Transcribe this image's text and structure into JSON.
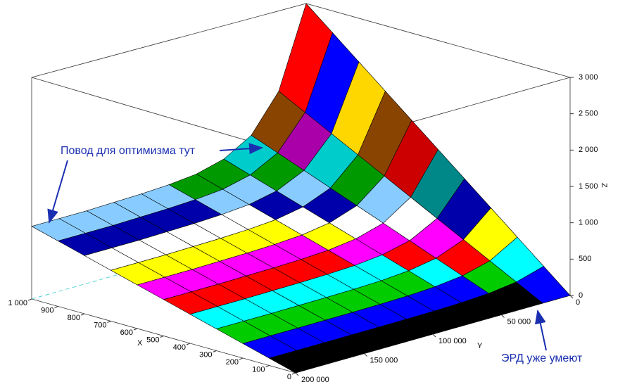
{
  "chart_data": {
    "type": "surface",
    "xlabel": "X",
    "ylabel": "Y",
    "zlabel": "Z",
    "x": [
      0,
      100,
      200,
      300,
      400,
      500,
      600,
      700,
      800,
      900,
      1000
    ],
    "y": [
      0,
      20000,
      40000,
      60000,
      80000,
      100000,
      120000,
      140000,
      160000,
      180000,
      200000
    ],
    "z": [
      [
        0,
        0,
        0,
        0,
        0,
        0,
        0,
        0,
        0,
        0,
        0
      ],
      [
        300,
        190,
        140,
        118,
        108,
        104,
        102,
        101,
        100,
        100,
        100
      ],
      [
        600,
        380,
        280,
        236,
        216,
        208,
        204,
        202,
        200,
        200,
        200
      ],
      [
        900,
        570,
        420,
        354,
        324,
        312,
        306,
        303,
        300,
        300,
        300
      ],
      [
        1200,
        760,
        560,
        472,
        432,
        416,
        408,
        404,
        400,
        400,
        400
      ],
      [
        1500,
        950,
        700,
        590,
        540,
        520,
        510,
        505,
        500,
        500,
        500
      ],
      [
        1800,
        1140,
        840,
        708,
        648,
        624,
        612,
        606,
        600,
        600,
        600
      ],
      [
        2100,
        1330,
        980,
        826,
        756,
        728,
        714,
        707,
        700,
        700,
        700
      ],
      [
        2400,
        1520,
        1120,
        944,
        864,
        832,
        816,
        808,
        800,
        800,
        800
      ],
      [
        2700,
        1710,
        1260,
        1062,
        972,
        936,
        918,
        909,
        900,
        900,
        900
      ],
      [
        3000,
        1900,
        1400,
        1180,
        1080,
        1040,
        1020,
        1010,
        1000,
        1000,
        1000
      ]
    ],
    "colormap": [
      "#000000",
      "#0000ff",
      "#00cc00",
      "#00ffff",
      "#ff0000",
      "#ff00ff",
      "#ffff00",
      "#ffffff",
      "#0000aa",
      "#88ccff",
      "#009900",
      "#008888",
      "#00cccc",
      "#cc0000",
      "#aa00aa",
      "#884400",
      "#ff8888",
      "#ffbbbb",
      "#ffd700"
    ],
    "xlim": [
      0,
      1000
    ],
    "ylim": [
      0,
      200000
    ],
    "zlim": [
      0,
      3000
    ],
    "xticks": [
      0,
      100,
      200,
      300,
      400,
      500,
      600,
      700,
      800,
      900,
      {
        "value": 1000,
        "label": "1 000"
      }
    ],
    "yticks": [
      0,
      {
        "value": 50000,
        "label": "50 000"
      },
      {
        "value": 100000,
        "label": "100 000"
      },
      {
        "value": 150000,
        "label": "150 000"
      },
      {
        "value": 200000,
        "label": "200 000"
      }
    ],
    "zticks": [
      0,
      500,
      {
        "value": 1000,
        "label": "1 000"
      },
      {
        "value": 1500,
        "label": "1 500"
      },
      {
        "value": 2000,
        "label": "2 000"
      },
      {
        "value": 2500,
        "label": "2 500"
      },
      {
        "value": 3000,
        "label": "3 000"
      }
    ],
    "annotations": [
      "Повод для оптимизма тут",
      "ЭРД уже умеют"
    ]
  }
}
